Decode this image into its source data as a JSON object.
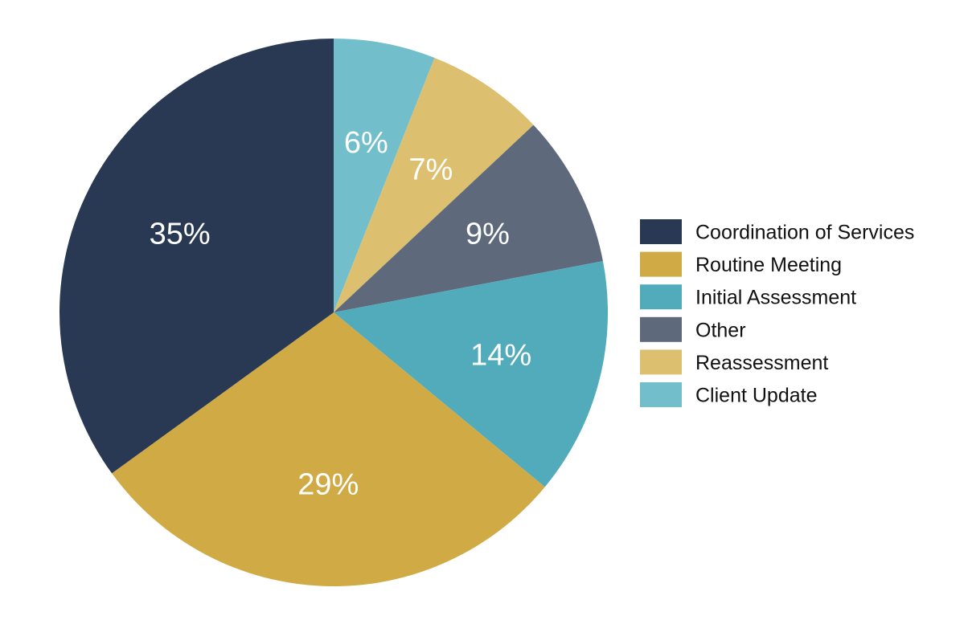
{
  "chart_data": {
    "type": "pie",
    "title": "",
    "legend_position": "right",
    "slices": [
      {
        "name": "Coordination of Services",
        "value": 35,
        "label": "35%",
        "color": "#293953"
      },
      {
        "name": "Routine Meeting",
        "value": 29,
        "label": "29%",
        "color": "#D0AA45"
      },
      {
        "name": "Initial Assessment",
        "value": 14,
        "label": "14%",
        "color": "#52ABBA"
      },
      {
        "name": "Other",
        "value": 9,
        "label": "9%",
        "color": "#5E6A7C"
      },
      {
        "name": "Reassessment",
        "value": 7,
        "label": "7%",
        "color": "#DCC070"
      },
      {
        "name": "Client Update",
        "value": 6,
        "label": "6%",
        "color": "#72BFCB"
      }
    ]
  }
}
